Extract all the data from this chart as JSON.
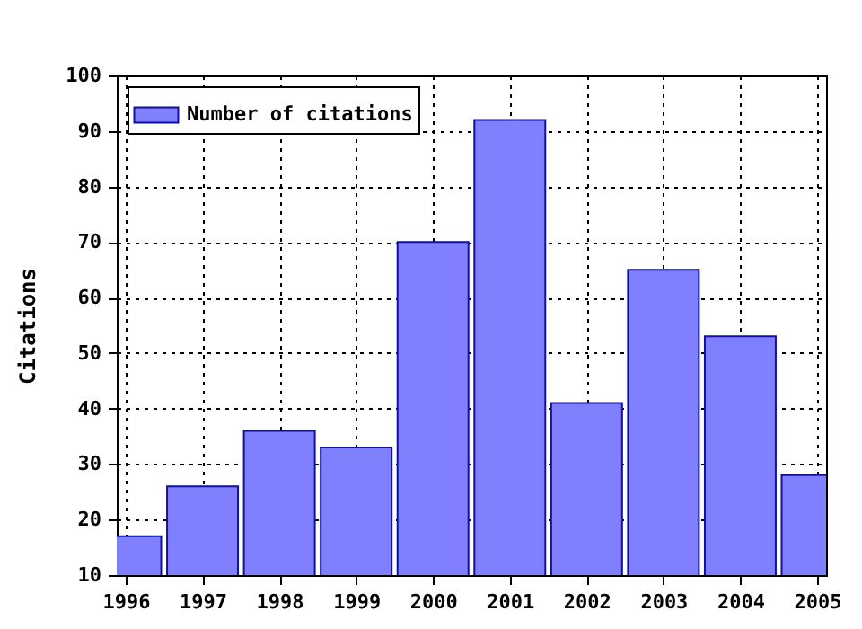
{
  "chart_data": {
    "type": "bar",
    "ylabel": "Citations",
    "x": [
      1996,
      1997,
      1998,
      1999,
      2000,
      2001,
      2002,
      2003,
      2004,
      2005
    ],
    "series": [
      {
        "name": "Number of citations",
        "color": "#8080ff",
        "values": [
          17,
          26,
          36,
          33,
          70,
          92,
          41,
          65,
          53,
          28
        ]
      }
    ],
    "xlim": [
      1996,
      2005
    ],
    "xticks": [
      1996,
      1997,
      1998,
      1999,
      2000,
      2001,
      2002,
      2003,
      2004,
      2005
    ],
    "ylim": [
      10,
      100
    ],
    "yticks": [
      10,
      20,
      30,
      40,
      50,
      60,
      70,
      80,
      90,
      100
    ],
    "grid": true,
    "legend": "top left"
  }
}
